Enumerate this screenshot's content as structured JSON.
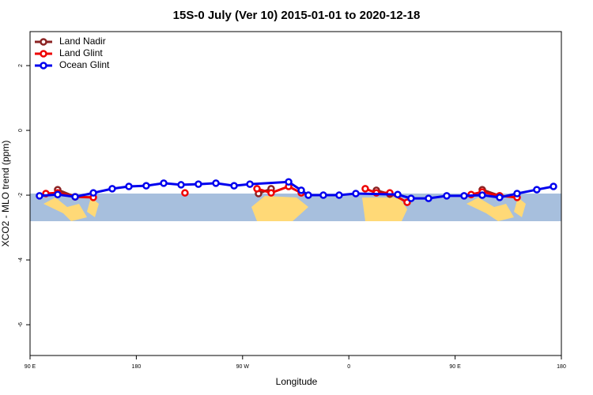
{
  "chart_data": {
    "type": "line",
    "title": "15S-0 July (Ver 10)   2015-01-01 to 2020-12-18",
    "xlabel": "Longitude",
    "ylabel": "XCO2 - MLO trend (ppm)",
    "xlim": [
      90,
      540
    ],
    "ylim": [
      -6.95,
      3.05
    ],
    "xticks": [
      {
        "value": 90,
        "label": "90 E"
      },
      {
        "value": 180,
        "label": "180"
      },
      {
        "value": 270,
        "label": "90 W"
      },
      {
        "value": 360,
        "label": "0"
      },
      {
        "value": 450,
        "label": "90 E"
      },
      {
        "value": 540,
        "label": "180"
      }
    ],
    "yticks": [
      -6,
      -4,
      -2,
      0,
      2
    ],
    "legend": "top-left",
    "series": [
      {
        "name": "Land Nadir",
        "color": "#8b2323",
        "x": [
          113.4,
          128.2,
          200,
          283.5,
          294.2,
          340,
          383.3,
          394.7,
          430,
          473,
          487.7
        ],
        "values": [
          -1.83,
          -2.05,
          null,
          -1.95,
          -1.8,
          null,
          -1.85,
          -1.97,
          null,
          -1.83,
          -2.02
        ]
      },
      {
        "name": "Land Glint",
        "color": "#ee0000",
        "x": [
          103.4,
          113.4,
          128.2,
          143.6,
          180,
          221.2,
          250,
          282.2,
          294.2,
          309,
          319.7,
          340,
          373.9,
          383.3,
          394.7,
          409.4,
          430,
          463.6,
          473,
          487.7,
          502.5
        ],
        "values": [
          -1.95,
          -1.93,
          -2.05,
          -2.07,
          null,
          -1.93,
          null,
          -1.8,
          -1.93,
          -1.73,
          -1.93,
          null,
          -1.8,
          -1.93,
          -1.93,
          -2.22,
          null,
          -1.98,
          -1.9,
          -2.02,
          -2.07
        ]
      },
      {
        "name": "Ocean Glint",
        "color": "#0000ee",
        "x": [
          98,
          113.4,
          128.2,
          143.6,
          159.6,
          173.7,
          188.4,
          203.2,
          217.9,
          232.6,
          247.4,
          262.8,
          276.2,
          309,
          319.7,
          325.7,
          338.4,
          351.8,
          365.9,
          401.4,
          412.7,
          427.5,
          442.9,
          457.6,
          473,
          487.7,
          502.5,
          519.2,
          533.3
        ],
        "values": [
          -2.02,
          -1.98,
          -2.05,
          -1.93,
          -1.8,
          -1.73,
          -1.71,
          -1.63,
          -1.68,
          -1.66,
          -1.63,
          -1.71,
          -1.66,
          -1.59,
          -1.85,
          -2.0,
          -2.0,
          -2.0,
          -1.95,
          -1.98,
          -2.1,
          -2.1,
          -2.02,
          -2.02,
          -2.0,
          -2.07,
          -1.95,
          -1.83,
          -1.73
        ]
      }
    ]
  }
}
